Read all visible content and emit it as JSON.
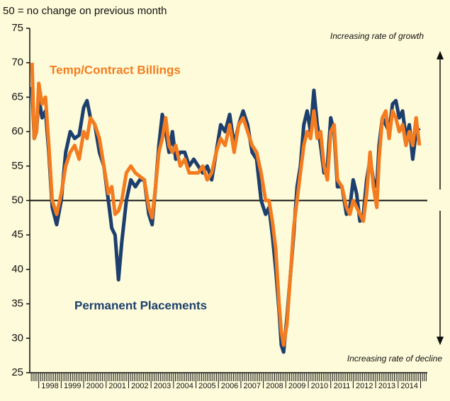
{
  "chart_data": {
    "type": "line",
    "subtitle": "50 = no change on previous month",
    "annotations": [
      "Increasing rate of growth",
      "Increasing rate of decline"
    ],
    "reference_line": 50,
    "x": [
      1997.7,
      1997.8,
      1997.9,
      1998.0,
      1998.15,
      1998.3,
      1998.45,
      1998.6,
      1998.8,
      1999.0,
      1999.2,
      1999.4,
      1999.6,
      1999.8,
      2000.0,
      2000.15,
      2000.3,
      2000.5,
      2000.7,
      2000.9,
      2001.1,
      2001.25,
      2001.4,
      2001.55,
      2001.7,
      2001.9,
      2002.1,
      2002.3,
      2002.5,
      2002.7,
      2002.9,
      2003.05,
      2003.2,
      2003.35,
      2003.5,
      2003.65,
      2003.8,
      2003.95,
      2004.1,
      2004.3,
      2004.5,
      2004.7,
      2004.9,
      2005.1,
      2005.3,
      2005.5,
      2005.7,
      2005.9,
      2006.1,
      2006.3,
      2006.5,
      2006.7,
      2006.9,
      2007.1,
      2007.3,
      2007.5,
      2007.7,
      2007.9,
      2008.1,
      2008.25,
      2008.4,
      2008.55,
      2008.7,
      2008.8,
      2008.9,
      2009.05,
      2009.2,
      2009.35,
      2009.5,
      2009.65,
      2009.8,
      2009.95,
      2010.1,
      2010.25,
      2010.4,
      2010.55,
      2010.7,
      2010.85,
      2011.0,
      2011.15,
      2011.3,
      2011.5,
      2011.7,
      2011.85,
      2012.0,
      2012.15,
      2012.3,
      2012.45,
      2012.6,
      2012.75,
      2012.9,
      2013.05,
      2013.15,
      2013.3,
      2013.45,
      2013.6,
      2013.75,
      2013.9,
      2014.05,
      2014.2,
      2014.35,
      2014.5,
      2014.65,
      2014.8,
      2014.95
    ],
    "series": [
      {
        "name": "Permanent Placements",
        "color": "#1c3f6e",
        "values": [
          66.5,
          59,
          60,
          65,
          62,
          63,
          57,
          49,
          46.5,
          50,
          57,
          60,
          59,
          59.5,
          63.5,
          64.5,
          62,
          61,
          57,
          55,
          50,
          46,
          45,
          38.5,
          44,
          50,
          53,
          52,
          53,
          53,
          48,
          46.5,
          52,
          58,
          62.5,
          60,
          57,
          60,
          56,
          57,
          57,
          55,
          56,
          55,
          54,
          55,
          53,
          57,
          61,
          60,
          62.5,
          58,
          61,
          63,
          61,
          57,
          56,
          50,
          48,
          49,
          45,
          40,
          34,
          29,
          28,
          33,
          39,
          45,
          52,
          55,
          61,
          63,
          60,
          66,
          61,
          58,
          54,
          55,
          62,
          60,
          52,
          52,
          48,
          49,
          53,
          51,
          47,
          48,
          53,
          56,
          53,
          52,
          58,
          62,
          61,
          60,
          64,
          64.5,
          62,
          63,
          59,
          61,
          56,
          60,
          60.5
        ]
      },
      {
        "name": "Temp/Contract Billings",
        "color": "#f47c20",
        "values": [
          70,
          59,
          60,
          67,
          64,
          65,
          58,
          50,
          48,
          51,
          55,
          57,
          58,
          56,
          60,
          59,
          62,
          61,
          59,
          55,
          51,
          52,
          48,
          48.5,
          50,
          54,
          55,
          54,
          53.5,
          53,
          49,
          47.5,
          52,
          57,
          59,
          62,
          58,
          57,
          58,
          55,
          56,
          54,
          54,
          54,
          55,
          53,
          54,
          57,
          59,
          58,
          61,
          57,
          61,
          62,
          60,
          58,
          57,
          54,
          50,
          50,
          47,
          43,
          35,
          31,
          29,
          32,
          39,
          46,
          50,
          54,
          58,
          60,
          59,
          63,
          59,
          60,
          55,
          53,
          60,
          61,
          53,
          52,
          49,
          48,
          50,
          49,
          48,
          47,
          51,
          57,
          52,
          49,
          56,
          62,
          63,
          59,
          63,
          62,
          60,
          61,
          58,
          60,
          58,
          62,
          58
        ]
      }
    ],
    "xlim": [
      1997.6,
      2015.3
    ],
    "xticks": [
      {
        "value": 1998.5,
        "label": "1998"
      },
      {
        "value": 1999.5,
        "label": "1999"
      },
      {
        "value": 2000.5,
        "label": "2000"
      },
      {
        "value": 2001.5,
        "label": "2001"
      },
      {
        "value": 2002.5,
        "label": "2002"
      },
      {
        "value": 2003.5,
        "label": "2003"
      },
      {
        "value": 2004.5,
        "label": "2004"
      },
      {
        "value": 2005.5,
        "label": "2005"
      },
      {
        "value": 2006.5,
        "label": "2006"
      },
      {
        "value": 2007.5,
        "label": "2007"
      },
      {
        "value": 2008.5,
        "label": "2008"
      },
      {
        "value": 2009.5,
        "label": "2009"
      },
      {
        "value": 2010.5,
        "label": "2010"
      },
      {
        "value": 2011.5,
        "label": "2011"
      },
      {
        "value": 2012.5,
        "label": "2012"
      },
      {
        "value": 2013.5,
        "label": "2013"
      },
      {
        "value": 2014.5,
        "label": "2014"
      }
    ],
    "ylim": [
      25,
      75
    ],
    "yticks": [
      25,
      30,
      35,
      40,
      45,
      50,
      55,
      60,
      65,
      70,
      75
    ]
  }
}
